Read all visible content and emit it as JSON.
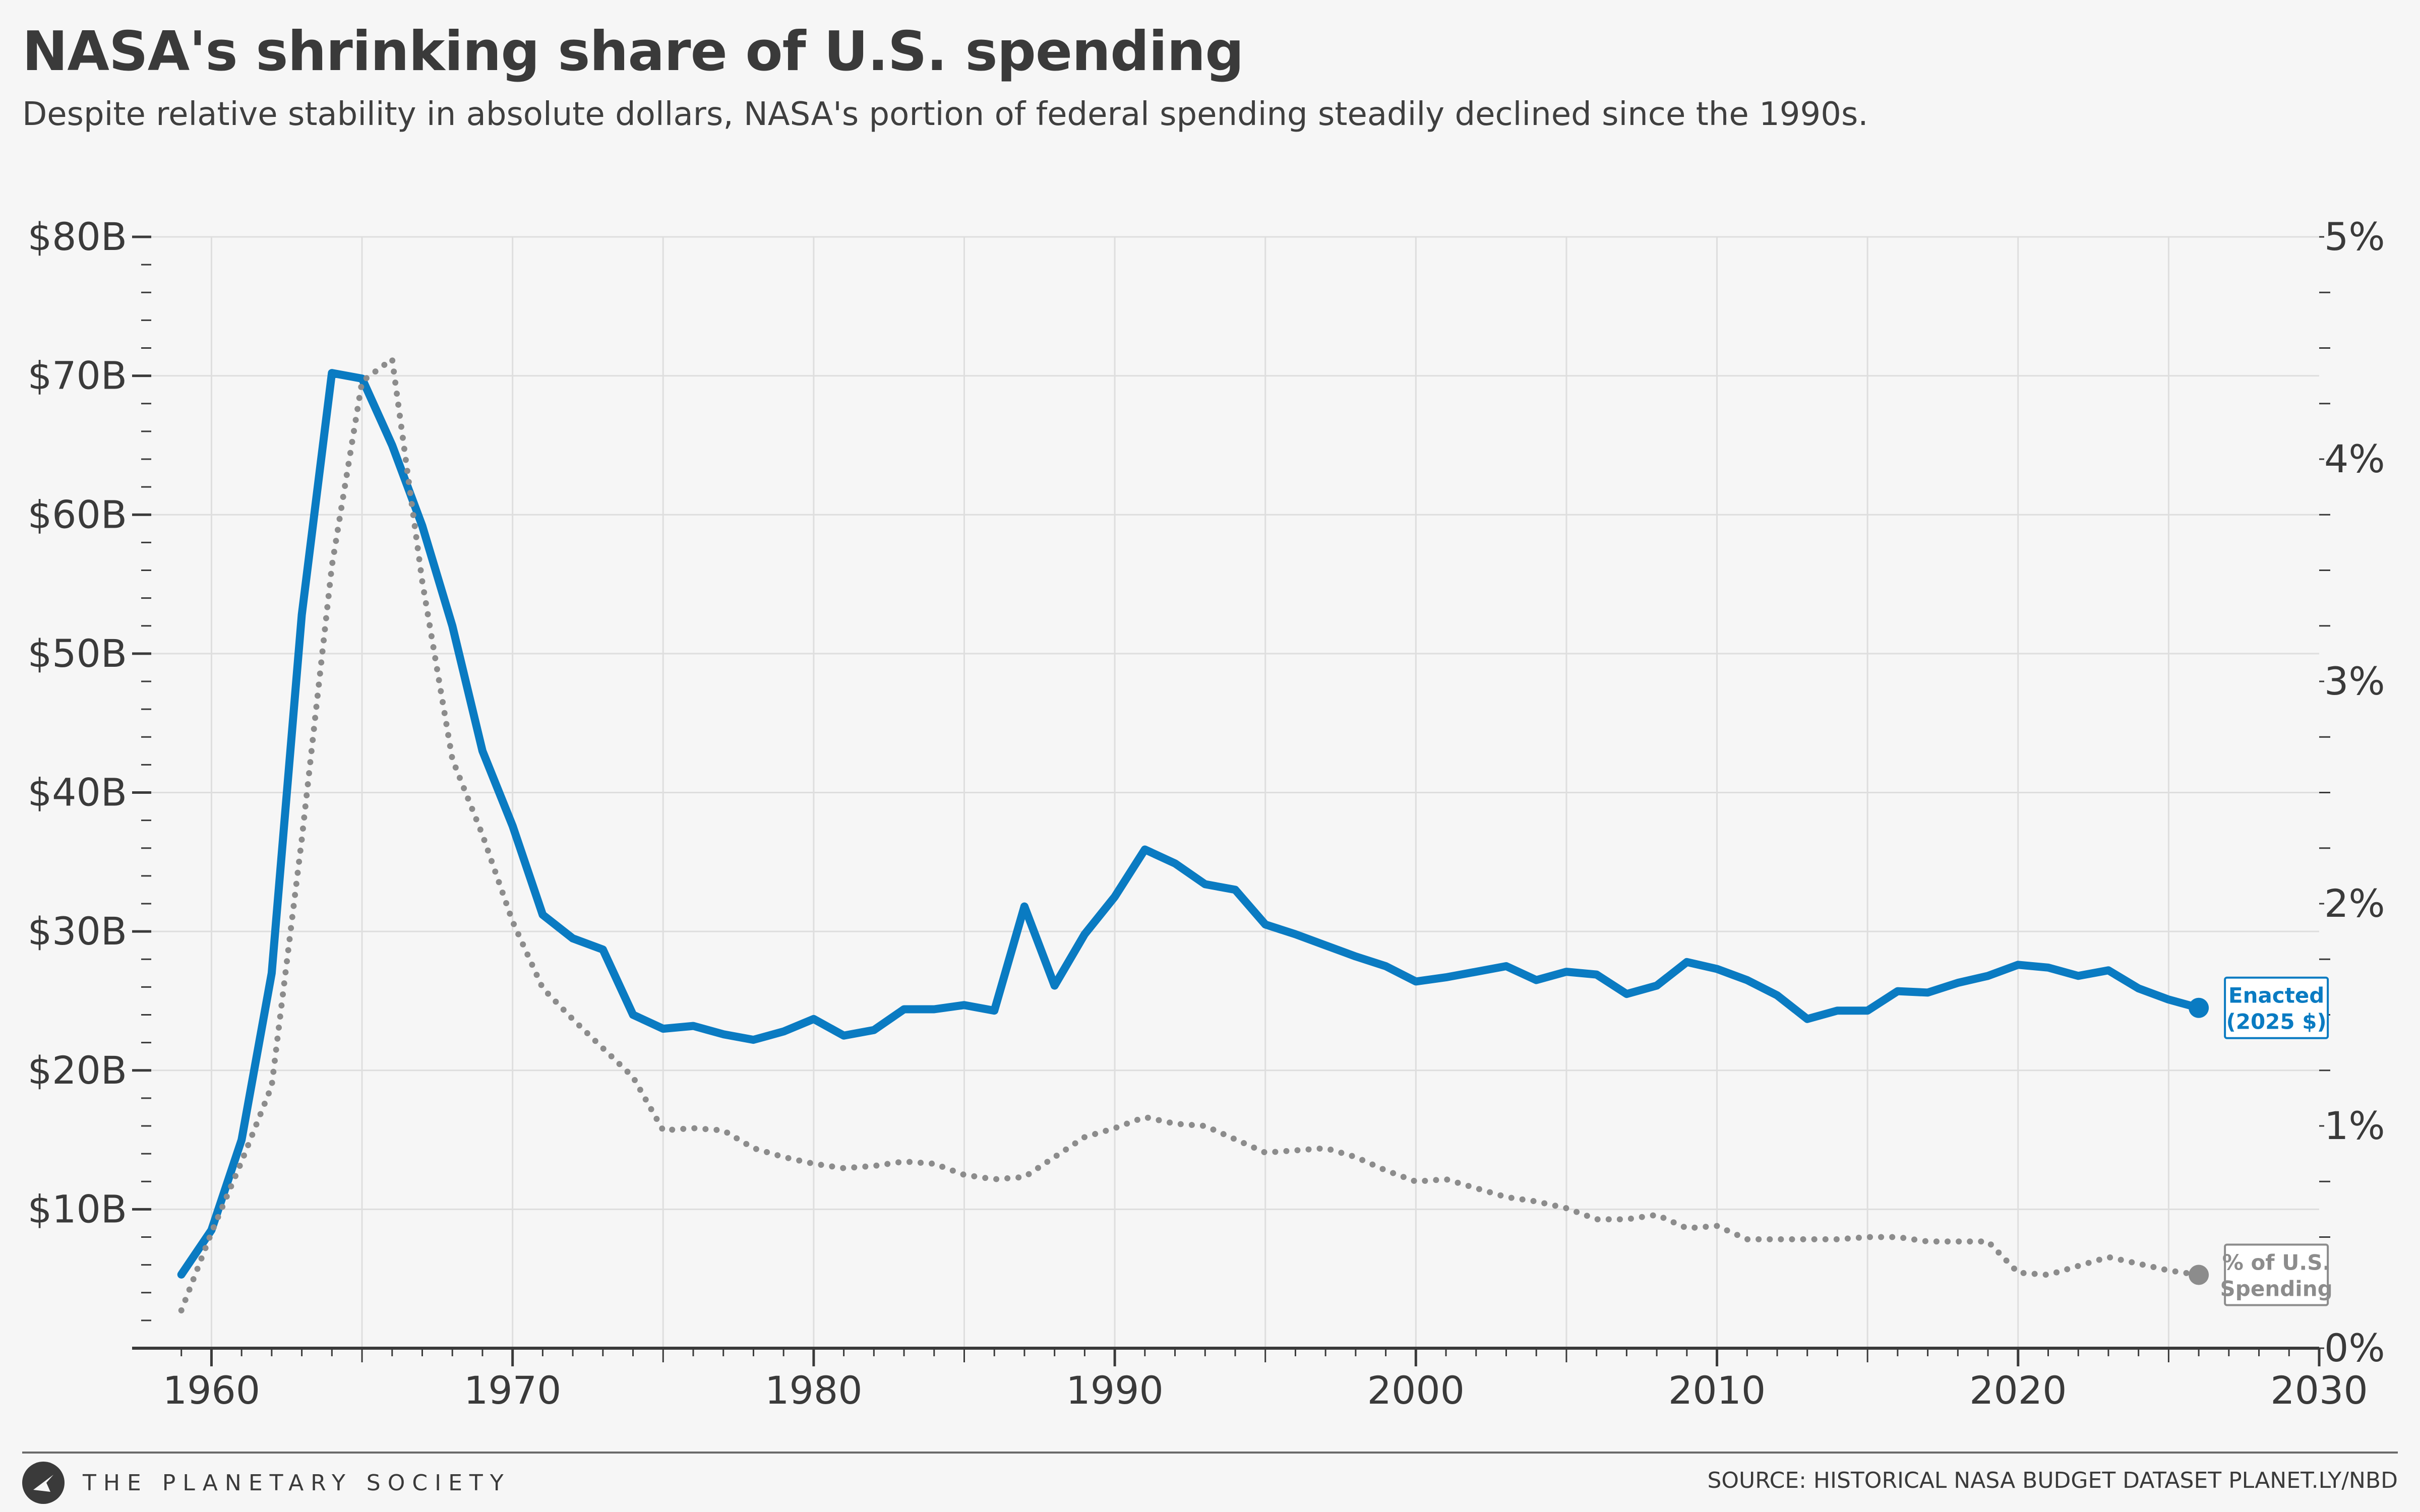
{
  "title": "NASA's shrinking share of U.S. spending",
  "subtitle": "Despite relative stability in absolute dollars, NASA's portion of federal spending steadily declined since the 1990s.",
  "footer": {
    "brand": "THE PLANETARY SOCIETY",
    "source": "SOURCE: HISTORICAL NASA BUDGET DATASET PLANET.LY/NBD"
  },
  "colors": {
    "enacted": "#0a7bc2",
    "share": "#8c8c8c",
    "grid": "#dedede",
    "axis": "#3a3a3a"
  },
  "chart_data": {
    "type": "line",
    "title": "NASA's shrinking share of U.S. spending",
    "subtitle": "Despite relative stability in absolute dollars, NASA's portion of federal spending steadily declined since the 1990s.",
    "xlabel": "",
    "ylabel_left": "",
    "ylabel_right": "",
    "xlim": [
      1958,
      2030
    ],
    "ylim_left": [
      0,
      80
    ],
    "ylim_right": [
      0,
      5
    ],
    "x_ticks": [
      1960,
      1970,
      1980,
      1990,
      2000,
      2010,
      2020,
      2030
    ],
    "x_tick_labels": [
      "1960",
      "1970",
      "1980",
      "1990",
      "2000",
      "2010",
      "2020",
      "2030"
    ],
    "y_left_ticks": [
      10,
      20,
      30,
      40,
      50,
      60,
      70,
      80
    ],
    "y_left_tick_labels": [
      "$10B",
      "$20B",
      "$30B",
      "$40B",
      "$50B",
      "$60B",
      "$70B",
      "$80B"
    ],
    "y_right_ticks": [
      0,
      1,
      2,
      3,
      4,
      5
    ],
    "y_right_tick_labels": [
      "0%",
      "1%",
      "2%",
      "3%",
      "4%",
      "5%"
    ],
    "grid": true,
    "series": [
      {
        "name": "Enacted (2025 $)",
        "label_lines": [
          "Enacted",
          "(2025 $)"
        ],
        "axis": "left",
        "style": "solid",
        "color": "#0a7bc2",
        "x": [
          1959,
          1960,
          1961,
          1962,
          1963,
          1964,
          1965,
          1966,
          1967,
          1968,
          1969,
          1970,
          1971,
          1972,
          1973,
          1974,
          1975,
          1976,
          1977,
          1978,
          1979,
          1980,
          1981,
          1982,
          1983,
          1984,
          1985,
          1986,
          1987,
          1988,
          1989,
          1990,
          1991,
          1992,
          1993,
          1994,
          1995,
          1996,
          1997,
          1998,
          1999,
          2000,
          2001,
          2002,
          2003,
          2004,
          2005,
          2006,
          2007,
          2008,
          2009,
          2010,
          2011,
          2012,
          2013,
          2014,
          2015,
          2016,
          2017,
          2018,
          2019,
          2020,
          2021,
          2022,
          2023,
          2024,
          2025,
          2026
        ],
        "values": [
          5.3,
          8.5,
          15,
          27,
          52.8,
          70.2,
          69.8,
          65,
          59.2,
          52,
          43,
          37.6,
          31.2,
          29.5,
          28.7,
          24,
          23,
          23.2,
          22.6,
          22.2,
          22.8,
          23.7,
          22.5,
          22.9,
          24.4,
          24.4,
          24.7,
          24.3,
          31.8,
          26.1,
          29.8,
          32.5,
          35.9,
          34.9,
          33.4,
          33,
          30.5,
          29.8,
          29,
          28.2,
          27.5,
          26.4,
          26.7,
          27.1,
          27.5,
          26.5,
          27.1,
          26.9,
          25.5,
          26.1,
          27.8,
          27.3,
          26.5,
          25.4,
          23.7,
          24.3,
          24.3,
          25.7,
          25.6,
          26.3,
          26.8,
          27.6,
          27.4,
          26.8,
          27.2,
          25.9,
          25.1,
          24.5
        ]
      },
      {
        "name": "% of U.S. Spending",
        "label_lines": [
          "% of U.S.",
          "Spending"
        ],
        "axis": "right",
        "style": "dotted",
        "color": "#8c8c8c",
        "x": [
          1959,
          1960,
          1961,
          1962,
          1963,
          1964,
          1965,
          1966,
          1967,
          1968,
          1969,
          1970,
          1971,
          1972,
          1973,
          1974,
          1975,
          1976,
          1977,
          1978,
          1979,
          1980,
          1981,
          1982,
          1983,
          1984,
          1985,
          1986,
          1987,
          1988,
          1989,
          1990,
          1991,
          1992,
          1993,
          1994,
          1995,
          1996,
          1997,
          1998,
          1999,
          2000,
          2001,
          2002,
          2003,
          2004,
          2005,
          2006,
          2007,
          2008,
          2009,
          2010,
          2011,
          2012,
          2013,
          2014,
          2015,
          2016,
          2017,
          2018,
          2019,
          2020,
          2021,
          2022,
          2023,
          2024,
          2025,
          2026
        ],
        "values": [
          0.17,
          0.52,
          0.84,
          1.18,
          2.29,
          3.52,
          4.35,
          4.45,
          3.45,
          2.65,
          2.31,
          1.92,
          1.62,
          1.48,
          1.35,
          1.22,
          0.98,
          0.99,
          0.98,
          0.9,
          0.86,
          0.83,
          0.81,
          0.82,
          0.84,
          0.83,
          0.78,
          0.76,
          0.77,
          0.86,
          0.95,
          0.99,
          1.04,
          1.01,
          1.0,
          0.94,
          0.88,
          0.89,
          0.9,
          0.86,
          0.8,
          0.75,
          0.76,
          0.72,
          0.68,
          0.66,
          0.63,
          0.58,
          0.58,
          0.6,
          0.54,
          0.55,
          0.49,
          0.49,
          0.49,
          0.49,
          0.5,
          0.5,
          0.48,
          0.48,
          0.48,
          0.34,
          0.33,
          0.37,
          0.41,
          0.38,
          0.35,
          0.33
        ]
      }
    ]
  }
}
